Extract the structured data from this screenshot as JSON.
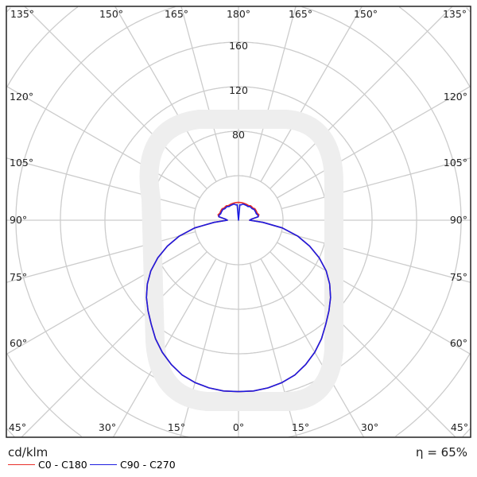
{
  "chart_data": {
    "type": "polar",
    "unit_label": "cd/klm",
    "efficiency_label": "η = 65%",
    "radial_axis": {
      "ticks": [
        40,
        80,
        120,
        160,
        200,
        240,
        280
      ],
      "tick_labels": [
        "80",
        "120",
        "160"
      ],
      "max_visible": 280
    },
    "angle_labels_top": [
      "135°",
      "150°",
      "165°",
      "180°",
      "165°",
      "150°",
      "135°"
    ],
    "angle_labels_left": [
      "120°",
      "105°",
      "90°",
      "75°",
      "60°"
    ],
    "angle_labels_right": [
      "120°",
      "105°",
      "90°",
      "75°",
      "60°"
    ],
    "angle_labels_bottom": [
      "45°",
      "30°",
      "15°",
      "0°",
      "15°",
      "30°",
      "45°"
    ],
    "angle_step_deg": 15,
    "grid": true,
    "legend_placement": "bottom-left",
    "angles_deg": [
      0,
      5,
      10,
      15,
      20,
      25,
      30,
      35,
      40,
      45,
      50,
      55,
      60,
      65,
      70,
      75,
      80,
      85,
      90,
      95,
      100,
      105,
      110,
      115,
      120,
      125,
      130,
      135,
      140,
      145,
      150,
      155,
      160,
      165,
      170,
      175,
      180
    ],
    "series": [
      {
        "name": "C0 - C180",
        "color": "#e8302a",
        "values": [
          154,
          154,
          153,
          151,
          148,
          143,
          137,
          130,
          122,
          115,
          108,
          100,
          91,
          80,
          68,
          55,
          40,
          22,
          10,
          12,
          18,
          19,
          18,
          18,
          18,
          18,
          17,
          17,
          17,
          16,
          16,
          16,
          16,
          16,
          16,
          16,
          16
        ]
      },
      {
        "name": "C90 - C270",
        "color": "#1c1ce0",
        "values": [
          154,
          154,
          153,
          151,
          148,
          143,
          137,
          130,
          122,
          115,
          108,
          100,
          91,
          80,
          68,
          55,
          40,
          22,
          10,
          12,
          18,
          18,
          17,
          17,
          17,
          17,
          16,
          16,
          16,
          15,
          15,
          15,
          15,
          15,
          14,
          14,
          0
        ]
      }
    ]
  }
}
